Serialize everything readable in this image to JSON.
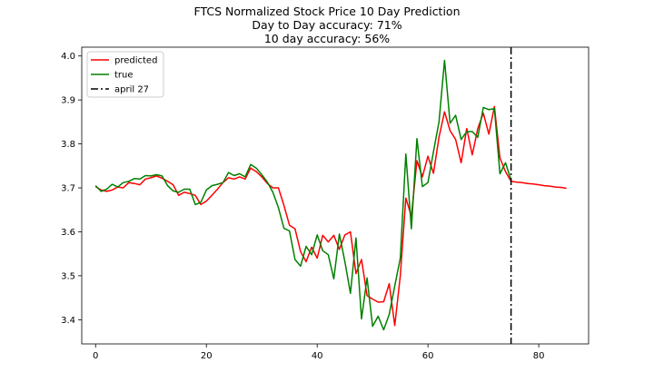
{
  "chart_data": {
    "type": "line",
    "title": "FTCS Normalized Stock Price 10 Day Prediction",
    "subtitle_1": "Day to Day accuracy: 71%",
    "subtitle_2": "10 day accuracy: 56%",
    "xlabel": "",
    "ylabel": "",
    "xlim": [
      -2.5,
      89
    ],
    "ylim": [
      3.345,
      4.02
    ],
    "xticks": [
      0,
      20,
      40,
      60,
      80
    ],
    "yticks": [
      3.4,
      3.5,
      3.6,
      3.7,
      3.8,
      3.9,
      4.0
    ],
    "grid": false,
    "legend_position": "top-left",
    "series": [
      {
        "name": "predicted",
        "color": "#ff0000",
        "x": [
          0,
          1,
          2,
          3,
          4,
          5,
          6,
          7,
          8,
          9,
          10,
          11,
          12,
          13,
          14,
          15,
          16,
          17,
          18,
          19,
          20,
          21,
          22,
          23,
          24,
          25,
          26,
          27,
          28,
          29,
          30,
          31,
          32,
          33,
          34,
          35,
          36,
          37,
          38,
          39,
          40,
          41,
          42,
          43,
          44,
          45,
          46,
          47,
          48,
          49,
          50,
          51,
          52,
          53,
          54,
          55,
          56,
          57,
          58,
          59,
          60,
          61,
          62,
          63,
          64,
          65,
          66,
          67,
          68,
          69,
          70,
          71,
          72,
          73,
          74,
          75,
          76,
          77,
          78,
          79,
          80,
          81,
          82,
          83,
          84,
          85
        ],
        "values": [
          3.703,
          3.695,
          3.692,
          3.695,
          3.702,
          3.7,
          3.712,
          3.71,
          3.707,
          3.72,
          3.723,
          3.727,
          3.722,
          3.715,
          3.707,
          3.683,
          3.69,
          3.687,
          3.683,
          3.662,
          3.67,
          3.683,
          3.697,
          3.712,
          3.723,
          3.72,
          3.725,
          3.72,
          3.745,
          3.737,
          3.725,
          3.71,
          3.7,
          3.7,
          3.66,
          3.615,
          3.607,
          3.555,
          3.532,
          3.565,
          3.54,
          3.592,
          3.577,
          3.592,
          3.56,
          3.593,
          3.6,
          3.505,
          3.537,
          3.455,
          3.447,
          3.44,
          3.441,
          3.482,
          3.387,
          3.5,
          3.677,
          3.635,
          3.762,
          3.725,
          3.772,
          3.733,
          3.815,
          3.873,
          3.83,
          3.81,
          3.757,
          3.835,
          3.775,
          3.835,
          3.87,
          3.822,
          3.885,
          3.768,
          3.737,
          3.715,
          3.713,
          3.712,
          3.71,
          3.709,
          3.707,
          3.705,
          3.704,
          3.702,
          3.701,
          3.699
        ]
      },
      {
        "name": "true",
        "color": "#008000",
        "x": [
          0,
          1,
          2,
          3,
          4,
          5,
          6,
          7,
          8,
          9,
          10,
          11,
          12,
          13,
          14,
          15,
          16,
          17,
          18,
          19,
          20,
          21,
          22,
          23,
          24,
          25,
          26,
          27,
          28,
          29,
          30,
          31,
          32,
          33,
          34,
          35,
          36,
          37,
          38,
          39,
          40,
          41,
          42,
          43,
          44,
          45,
          46,
          47,
          48,
          49,
          50,
          51,
          52,
          53,
          54,
          55,
          56,
          57,
          58,
          59,
          60,
          61,
          62,
          63,
          64,
          65,
          66,
          67,
          68,
          69,
          70,
          71,
          72,
          73,
          74,
          75
        ],
        "values": [
          3.705,
          3.692,
          3.697,
          3.708,
          3.702,
          3.712,
          3.715,
          3.721,
          3.72,
          3.728,
          3.727,
          3.73,
          3.727,
          3.705,
          3.693,
          3.69,
          3.697,
          3.697,
          3.662,
          3.667,
          3.695,
          3.705,
          3.708,
          3.712,
          3.735,
          3.728,
          3.732,
          3.725,
          3.753,
          3.745,
          3.73,
          3.713,
          3.69,
          3.655,
          3.608,
          3.602,
          3.537,
          3.522,
          3.567,
          3.548,
          3.593,
          3.557,
          3.548,
          3.493,
          3.595,
          3.532,
          3.46,
          3.586,
          3.402,
          3.495,
          3.385,
          3.408,
          3.377,
          3.412,
          3.477,
          3.54,
          3.777,
          3.607,
          3.812,
          3.703,
          3.712,
          3.782,
          3.85,
          3.99,
          3.847,
          3.865,
          3.81,
          3.828,
          3.828,
          3.815,
          3.883,
          3.878,
          3.88,
          3.732,
          3.757,
          3.718
        ]
      }
    ],
    "vline": {
      "name": "april 27",
      "x": 75,
      "color": "#000000"
    },
    "legend": [
      "predicted",
      "true",
      "april 27"
    ]
  }
}
